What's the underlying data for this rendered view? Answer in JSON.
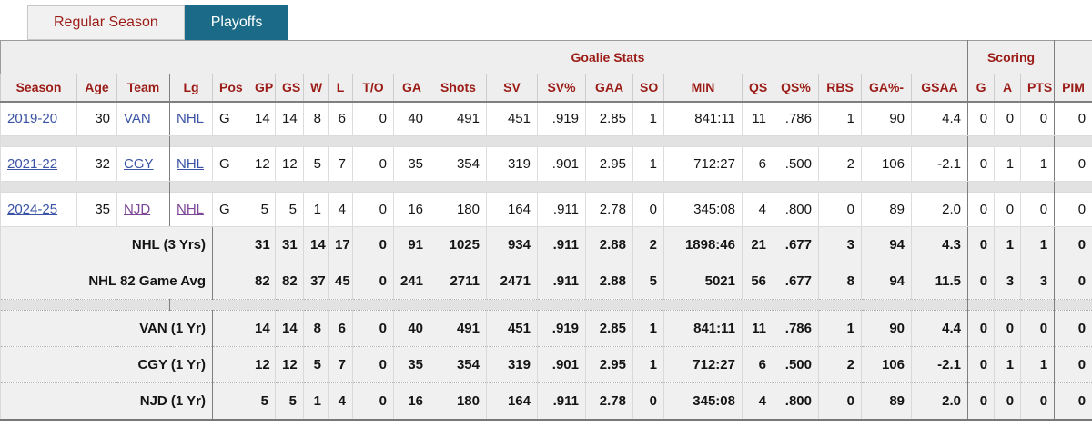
{
  "colors": {
    "tab_active_bg": "#1b6b88",
    "header_red": "#9b1c16",
    "link_blue": "#3a53a4",
    "link_visited_purple": "#7d4696"
  },
  "tabs": [
    {
      "label": "Regular Season",
      "active": false
    },
    {
      "label": "Playoffs",
      "active": true
    }
  ],
  "table": {
    "group_headers": [
      {
        "label": "",
        "colspan": 5
      },
      {
        "label": "Goalie Stats",
        "colspan": 17
      },
      {
        "label": "Scoring",
        "colspan": 3
      },
      {
        "label": "",
        "colspan": 1
      }
    ],
    "columns": [
      "Season",
      "Age",
      "Team",
      "Lg",
      "Pos",
      "GP",
      "GS",
      "W",
      "L",
      "T/O",
      "GA",
      "Shots",
      "SV",
      "SV%",
      "GAA",
      "SO",
      "MIN",
      "QS",
      "QS%",
      "RBS",
      "GA%-",
      "GSAA",
      "G",
      "A",
      "PTS",
      "PIM"
    ],
    "rows": [
      {
        "season": {
          "text": "2019-20",
          "visited": false
        },
        "age": "30",
        "team": {
          "text": "VAN",
          "visited": false
        },
        "lg": {
          "text": "NHL",
          "visited": false
        },
        "pos": "G",
        "stats": [
          "14",
          "14",
          "8",
          "6",
          "0",
          "40",
          "491",
          "451",
          ".919",
          "2.85",
          "1",
          "841:11",
          "11",
          ".786",
          "1",
          "90",
          "4.4",
          "0",
          "0",
          "0",
          "0"
        ]
      },
      {
        "season": {
          "text": "2021-22",
          "visited": false
        },
        "age": "32",
        "team": {
          "text": "CGY",
          "visited": false
        },
        "lg": {
          "text": "NHL",
          "visited": false
        },
        "pos": "G",
        "stats": [
          "12",
          "12",
          "5",
          "7",
          "0",
          "35",
          "354",
          "319",
          ".901",
          "2.95",
          "1",
          "712:27",
          "6",
          ".500",
          "2",
          "106",
          "-2.1",
          "0",
          "1",
          "1",
          "0"
        ]
      },
      {
        "season": {
          "text": "2024-25",
          "visited": false
        },
        "age": "35",
        "team": {
          "text": "NJD",
          "visited": true
        },
        "lg": {
          "text": "NHL",
          "visited": true
        },
        "pos": "G",
        "stats": [
          "5",
          "5",
          "1",
          "4",
          "0",
          "16",
          "180",
          "164",
          ".911",
          "2.78",
          "0",
          "345:08",
          "4",
          ".800",
          "0",
          "89",
          "2.0",
          "0",
          "0",
          "0",
          "0"
        ]
      }
    ],
    "summary_rows": [
      {
        "label": "NHL (3 Yrs)",
        "stats": [
          "31",
          "31",
          "14",
          "17",
          "0",
          "91",
          "1025",
          "934",
          ".911",
          "2.88",
          "2",
          "1898:46",
          "21",
          ".677",
          "3",
          "94",
          "4.3",
          "0",
          "1",
          "1",
          "0"
        ]
      },
      {
        "label": "NHL 82 Game Avg",
        "stats": [
          "82",
          "82",
          "37",
          "45",
          "0",
          "241",
          "2711",
          "2471",
          ".911",
          "2.88",
          "5",
          "5021",
          "56",
          ".677",
          "8",
          "94",
          "11.5",
          "0",
          "3",
          "3",
          "0"
        ]
      },
      {
        "label": "VAN (1 Yr)",
        "stats": [
          "14",
          "14",
          "8",
          "6",
          "0",
          "40",
          "491",
          "451",
          ".919",
          "2.85",
          "1",
          "841:11",
          "11",
          ".786",
          "1",
          "90",
          "4.4",
          "0",
          "0",
          "0",
          "0"
        ]
      },
      {
        "label": "CGY (1 Yr)",
        "stats": [
          "12",
          "12",
          "5",
          "7",
          "0",
          "35",
          "354",
          "319",
          ".901",
          "2.95",
          "1",
          "712:27",
          "6",
          ".500",
          "2",
          "106",
          "-2.1",
          "0",
          "1",
          "1",
          "0"
        ]
      },
      {
        "label": "NJD (1 Yr)",
        "stats": [
          "5",
          "5",
          "1",
          "4",
          "0",
          "16",
          "180",
          "164",
          ".911",
          "2.78",
          "0",
          "345:08",
          "4",
          ".800",
          "0",
          "89",
          "2.0",
          "0",
          "0",
          "0",
          "0"
        ]
      }
    ]
  }
}
